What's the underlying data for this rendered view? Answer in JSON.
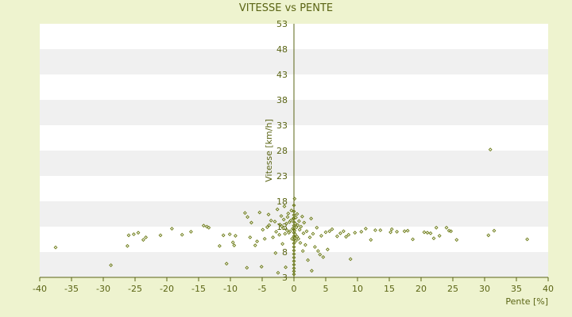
{
  "chart_data": {
    "type": "scatter",
    "title": "VITESSE vs PENTE",
    "xlabel": "Pente [%]",
    "ylabel": "Vitesse [km/h]",
    "xlim": [
      -40,
      40
    ],
    "ylim": [
      3,
      53
    ],
    "xticks": [
      -40,
      -35,
      -30,
      -25,
      -20,
      -15,
      -10,
      -5,
      0,
      5,
      10,
      15,
      20,
      25,
      30,
      35,
      40
    ],
    "yticks": [
      3,
      8,
      13,
      18,
      23,
      28,
      33,
      38,
      43,
      48,
      53
    ],
    "grid": "horizontal bands",
    "legend": "none",
    "colors": {
      "background": "#eef3cf",
      "plot_band_light": "#ffffff",
      "plot_band_dark": "#f0f0f0",
      "axis": "#5a6414",
      "marker": "#6b7a14"
    },
    "series": [
      {
        "marker": "diamond",
        "points": [
          [
            -37.5,
            8.9
          ],
          [
            -28.8,
            5.4
          ],
          [
            -26.2,
            9.2
          ],
          [
            -26.0,
            11.3
          ],
          [
            -25.2,
            11.5
          ],
          [
            -24.5,
            11.8
          ],
          [
            -23.7,
            10.4
          ],
          [
            -23.3,
            10.9
          ],
          [
            -21.0,
            11.3
          ],
          [
            -19.2,
            12.6
          ],
          [
            -17.6,
            11.4
          ],
          [
            -16.2,
            12.0
          ],
          [
            -14.2,
            13.2
          ],
          [
            -13.7,
            13.0
          ],
          [
            -13.4,
            12.8
          ],
          [
            -11.7,
            9.2
          ],
          [
            -11.1,
            11.3
          ],
          [
            -10.6,
            5.7
          ],
          [
            -10.1,
            11.5
          ],
          [
            -9.6,
            9.9
          ],
          [
            -9.4,
            9.3
          ],
          [
            -9.2,
            11.2
          ],
          [
            -7.7,
            15.7
          ],
          [
            -7.4,
            4.9
          ],
          [
            -7.3,
            14.9
          ],
          [
            -6.9,
            10.9
          ],
          [
            -6.7,
            13.8
          ],
          [
            -6.1,
            9.3
          ],
          [
            -5.8,
            10.1
          ],
          [
            -5.4,
            15.8
          ],
          [
            -5.1,
            5.1
          ],
          [
            -4.9,
            12.4
          ],
          [
            -4.6,
            10.6
          ],
          [
            -4.2,
            12.9
          ],
          [
            -4.0,
            15.4
          ],
          [
            -3.9,
            13.3
          ],
          [
            -3.6,
            14.2
          ],
          [
            -3.3,
            10.9
          ],
          [
            -3.0,
            14.0
          ],
          [
            -2.9,
            7.8
          ],
          [
            -2.8,
            12.0
          ],
          [
            -2.6,
            16.4
          ],
          [
            -2.5,
            3.9
          ],
          [
            -2.3,
            11.4
          ],
          [
            -2.2,
            13.4
          ],
          [
            -2.0,
            15.1
          ],
          [
            -1.9,
            13.1
          ],
          [
            -1.8,
            9.6
          ],
          [
            -1.7,
            12.7
          ],
          [
            -1.6,
            14.4
          ],
          [
            -1.5,
            17.0
          ],
          [
            -1.4,
            11.6
          ],
          [
            -1.3,
            5.0
          ],
          [
            -1.2,
            13.6
          ],
          [
            -1.1,
            12.3
          ],
          [
            -1.0,
            14.9
          ],
          [
            -0.9,
            15.6
          ],
          [
            -0.8,
            11.8
          ],
          [
            -0.7,
            13.9
          ],
          [
            -0.6,
            12.1
          ],
          [
            -0.5,
            14.2
          ],
          [
            -0.4,
            16.2
          ],
          [
            -0.3,
            10.6
          ],
          [
            -0.2,
            12.6
          ],
          [
            -0.1,
            14.6
          ],
          [
            0.0,
            3.6
          ],
          [
            0.0,
            4.2
          ],
          [
            0.0,
            4.8
          ],
          [
            0.0,
            5.5
          ],
          [
            0.0,
            6.2
          ],
          [
            0.0,
            6.9
          ],
          [
            0.0,
            7.6
          ],
          [
            0.0,
            8.3
          ],
          [
            0.0,
            9.0
          ],
          [
            0.0,
            9.7
          ],
          [
            0.0,
            10.4
          ],
          [
            0.0,
            11.1
          ],
          [
            0.0,
            11.8
          ],
          [
            0.0,
            12.5
          ],
          [
            0.0,
            13.2
          ],
          [
            0.0,
            13.9
          ],
          [
            0.0,
            14.6
          ],
          [
            0.0,
            15.3
          ],
          [
            0.0,
            16.0
          ],
          [
            0.0,
            17.2
          ],
          [
            0.1,
            10.8
          ],
          [
            0.1,
            12.2
          ],
          [
            0.1,
            18.5
          ],
          [
            0.2,
            11.5
          ],
          [
            0.2,
            13.6
          ],
          [
            0.3,
            10.2
          ],
          [
            0.3,
            14.8
          ],
          [
            0.4,
            12.9
          ],
          [
            0.5,
            11.0
          ],
          [
            0.5,
            15.5
          ],
          [
            0.6,
            13.3
          ],
          [
            0.7,
            10.6
          ],
          [
            0.8,
            14.1
          ],
          [
            0.9,
            12.4
          ],
          [
            1.0,
            9.8
          ],
          [
            1.1,
            13.0
          ],
          [
            1.3,
            15.0
          ],
          [
            1.4,
            8.2
          ],
          [
            1.5,
            11.7
          ],
          [
            1.6,
            13.8
          ],
          [
            1.8,
            9.4
          ],
          [
            2.0,
            12.1
          ],
          [
            2.2,
            6.4
          ],
          [
            2.5,
            10.9
          ],
          [
            2.7,
            14.6
          ],
          [
            2.8,
            4.3
          ],
          [
            3.0,
            11.6
          ],
          [
            3.3,
            9.0
          ],
          [
            3.6,
            12.8
          ],
          [
            3.8,
            8.2
          ],
          [
            4.1,
            7.5
          ],
          [
            4.3,
            11.2
          ],
          [
            4.6,
            7.0
          ],
          [
            5.0,
            11.9
          ],
          [
            5.3,
            8.5
          ],
          [
            5.6,
            12.1
          ],
          [
            6.0,
            12.5
          ],
          [
            6.8,
            11.1
          ],
          [
            7.3,
            11.7
          ],
          [
            7.8,
            12.1
          ],
          [
            8.2,
            11.0
          ],
          [
            8.6,
            11.4
          ],
          [
            8.9,
            6.6
          ],
          [
            9.6,
            11.8
          ],
          [
            10.6,
            12.0
          ],
          [
            11.3,
            12.6
          ],
          [
            12.1,
            10.4
          ],
          [
            12.8,
            12.3
          ],
          [
            13.6,
            12.3
          ],
          [
            15.2,
            11.9
          ],
          [
            15.4,
            12.5
          ],
          [
            16.2,
            12.0
          ],
          [
            17.4,
            12.1
          ],
          [
            17.9,
            12.2
          ],
          [
            18.7,
            10.5
          ],
          [
            20.5,
            11.9
          ],
          [
            21.0,
            11.8
          ],
          [
            21.5,
            11.7
          ],
          [
            22.0,
            10.7
          ],
          [
            22.4,
            12.8
          ],
          [
            22.9,
            11.2
          ],
          [
            24.0,
            12.8
          ],
          [
            24.4,
            12.2
          ],
          [
            24.7,
            12.1
          ],
          [
            25.6,
            10.4
          ],
          [
            30.6,
            11.3
          ],
          [
            30.9,
            28.2
          ],
          [
            31.5,
            12.2
          ],
          [
            36.7,
            10.5
          ]
        ]
      }
    ]
  }
}
